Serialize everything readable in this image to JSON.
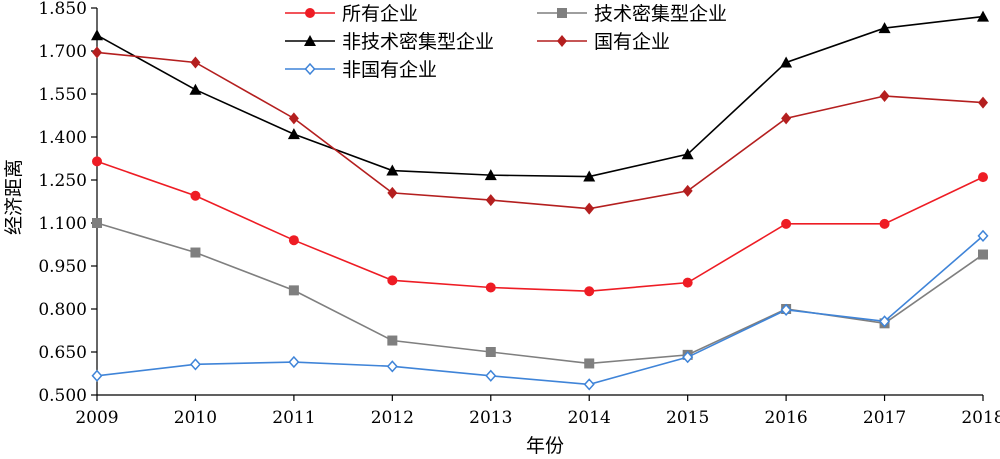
{
  "chart_data": {
    "type": "line",
    "title": "",
    "xlabel": "年份",
    "ylabel": "经济距离",
    "x": [
      "2009",
      "2010",
      "2011",
      "2012",
      "2013",
      "2014",
      "2015",
      "2016",
      "2017",
      "2018"
    ],
    "ylim": [
      0.5,
      1.85
    ],
    "yticks": [
      "0.500",
      "0.650",
      "0.800",
      "0.950",
      "1.100",
      "1.250",
      "1.400",
      "1.550",
      "1.700",
      "1.850"
    ],
    "grid": false,
    "legend_position": "top",
    "series": [
      {
        "name": "所有企业",
        "color": "#ee1c24",
        "marker": "circle",
        "values": [
          1.315,
          1.195,
          1.04,
          0.9,
          0.875,
          0.862,
          0.892,
          1.097,
          1.097,
          1.26
        ]
      },
      {
        "name": "技术密集型企业",
        "color": "#7f7f7f",
        "marker": "square",
        "values": [
          1.1,
          0.997,
          0.865,
          0.69,
          0.65,
          0.61,
          0.64,
          0.8,
          0.75,
          0.99
        ]
      },
      {
        "name": "非技术密集型企业",
        "color": "#000000",
        "marker": "triangle",
        "values": [
          1.755,
          1.565,
          1.41,
          1.283,
          1.267,
          1.262,
          1.34,
          1.66,
          1.78,
          1.82
        ]
      },
      {
        "name": "国有企业",
        "color": "#b41f1f",
        "marker": "diamond",
        "values": [
          1.695,
          1.66,
          1.465,
          1.205,
          1.18,
          1.15,
          1.212,
          1.465,
          1.543,
          1.52
        ]
      },
      {
        "name": "非国有企业",
        "color": "#3f84d8",
        "marker": "diamond-open",
        "values": [
          0.567,
          0.607,
          0.615,
          0.6,
          0.567,
          0.537,
          0.632,
          0.797,
          0.757,
          1.055
        ]
      }
    ]
  }
}
